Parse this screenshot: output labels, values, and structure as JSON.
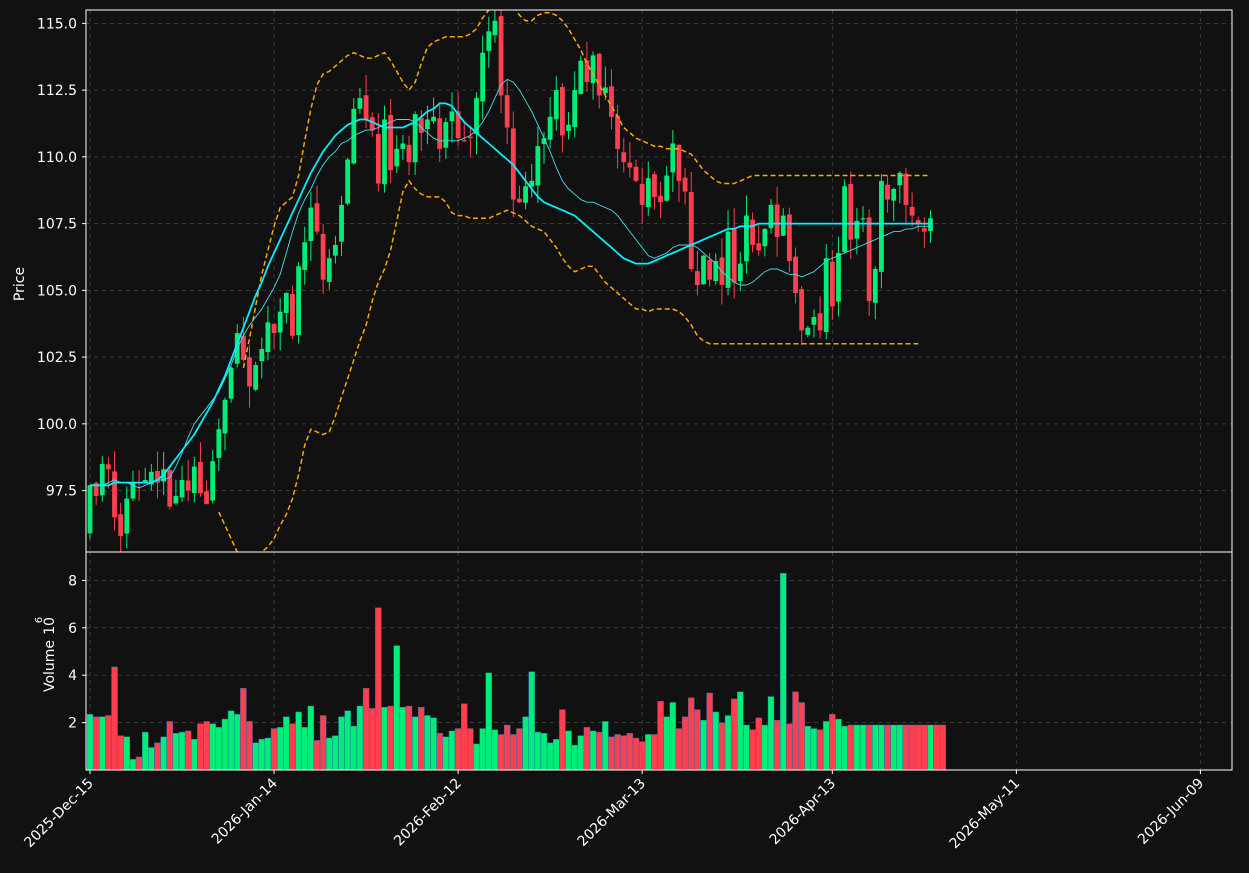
{
  "chart_data": [
    {
      "type": "candlestick",
      "panel": "price",
      "ylabel": "Price",
      "ylim": [
        95.2,
        115.5
      ],
      "yticks": [
        "97.5",
        "100.0",
        "102.5",
        "105.0",
        "107.5",
        "110.0",
        "112.5",
        "115.0"
      ],
      "xticks": [
        "2025-Dec-15",
        "2026-Jan-14",
        "2026-Feb-12",
        "2026-Mar-13",
        "2026-Apr-13",
        "2026-May-11",
        "2026-Jun-09"
      ],
      "xtick_index": [
        0,
        30,
        60,
        90,
        121,
        151,
        181
      ],
      "grid": true,
      "colors": {
        "up": "#00ee77",
        "down": "#ff3f4f",
        "ma_fast": "#40e0e8",
        "ma_slow": "#00f0ff",
        "bands": "#ffa500",
        "background": "#111111",
        "grid": "#444444",
        "axis": "#ffffff"
      },
      "close": [
        97.7,
        97.3,
        98.5,
        98.3,
        96.5,
        95.8,
        97.2,
        97.8,
        97.8,
        97.9,
        98.2,
        97.8,
        98.3,
        96.9,
        97.3,
        97.9,
        97.5,
        98.4,
        97.4,
        97.0,
        98.6,
        99.8,
        100.9,
        102.1,
        103.4,
        102.4,
        101.4,
        102.2,
        102.8,
        103.8,
        103.4,
        104.2,
        104.9,
        103.3,
        105.9,
        106.8,
        108.1,
        107.2,
        105.4,
        106.2,
        106.7,
        108.2,
        109.9,
        111.8,
        112.2,
        111.4,
        111.0,
        109.0,
        111.4,
        109.5,
        110.3,
        110.5,
        109.8,
        111.6,
        110.9,
        111.4,
        111.5,
        110.3,
        111.3,
        111.7,
        110.7,
        110.6,
        110.7,
        112.2,
        113.9,
        114.7,
        115.1,
        112.3,
        111.1,
        108.4,
        108.3,
        108.9,
        109.1,
        110.4,
        110.7,
        111.5,
        112.5,
        110.8,
        111.2,
        112.5,
        113.6,
        112.8,
        113.8,
        112.3,
        112.6,
        111.5,
        110.3,
        109.8,
        109.6,
        109.1,
        108.2,
        109.2,
        108.5,
        108.3,
        109.3,
        110.5,
        109.1,
        108.7,
        105.8,
        105.2,
        106.3,
        105.4,
        106.1,
        105.2,
        107.2,
        105.3,
        106.0,
        107.8,
        106.7,
        106.5,
        107.3,
        108.2,
        107.0,
        107.8,
        106.1,
        104.9,
        103.5,
        103.6,
        104.0,
        103.5,
        106.2,
        104.4,
        106.4,
        108.9,
        106.9,
        107.6,
        107.7,
        104.6,
        105.8,
        109.1,
        108.4,
        108.8,
        109.4,
        108.2,
        107.8,
        107.5,
        107.2,
        107.7
      ],
      "ma_fast": [
        97.7,
        97.7,
        97.7,
        97.8,
        97.9,
        97.8,
        97.8,
        97.7,
        97.6,
        97.7,
        97.8,
        97.9,
        97.9,
        98.0,
        98.4,
        98.9,
        99.5,
        100.0,
        100.3,
        100.6,
        100.9,
        101.2,
        101.7,
        102.2,
        102.8,
        103.3,
        103.7,
        104.0,
        104.3,
        104.7,
        105.1,
        105.6,
        106.4,
        107.2,
        107.9,
        108.4,
        108.8,
        109.3,
        109.7,
        110.0,
        110.2,
        110.5,
        110.6,
        110.8,
        110.9,
        111.0,
        111.0,
        111.1,
        111.2,
        111.3,
        111.4,
        111.4,
        111.4,
        111.3,
        111.1,
        110.9,
        110.7,
        110.6,
        110.6,
        110.6,
        110.6,
        110.7,
        110.8,
        111.0,
        111.3,
        111.7,
        112.2,
        112.7,
        112.9,
        112.8,
        112.5,
        112.1,
        111.7,
        111.2,
        110.7,
        110.2,
        109.6,
        109.1,
        108.8,
        108.6,
        108.4,
        108.3,
        108.3,
        108.2,
        108.1,
        108.0,
        107.8,
        107.5,
        107.2,
        106.9,
        106.6,
        106.3,
        106.2,
        106.3,
        106.4,
        106.6,
        106.7,
        106.7,
        106.7,
        106.6,
        106.4,
        106.2,
        106.0,
        105.7,
        105.5,
        105.3,
        105.2,
        105.2,
        105.3,
        105.5,
        105.7,
        105.8,
        105.8,
        105.7,
        105.6,
        105.6,
        105.5,
        105.6,
        105.7,
        105.9,
        106.1,
        106.2,
        106.3,
        106.4,
        106.5,
        106.6,
        106.7,
        106.8,
        106.9,
        107.0,
        107.1,
        107.2,
        107.2,
        107.3,
        107.3,
        107.4,
        107.4,
        107.4
      ],
      "ma_slow": [
        97.7,
        97.7,
        97.7,
        97.7,
        97.8,
        97.8,
        97.8,
        97.8,
        97.8,
        97.8,
        97.8,
        97.9,
        98.1,
        98.4,
        98.7,
        99.0,
        99.3,
        99.6,
        100.0,
        100.4,
        100.8,
        101.3,
        101.8,
        102.4,
        103.0,
        103.6,
        104.2,
        104.8,
        105.3,
        105.9,
        106.4,
        106.9,
        107.4,
        107.9,
        108.4,
        108.9,
        109.4,
        109.8,
        110.2,
        110.5,
        110.8,
        111.0,
        111.2,
        111.3,
        111.4,
        111.4,
        111.3,
        111.2,
        111.1,
        111.1,
        111.1,
        111.1,
        111.2,
        111.3,
        111.5,
        111.7,
        111.8,
        112.0,
        112.0,
        111.9,
        111.6,
        111.3,
        111.1,
        110.9,
        110.7,
        110.5,
        110.3,
        110.1,
        109.9,
        109.7,
        109.4,
        109.1,
        108.8,
        108.5,
        108.3,
        108.2,
        108.1,
        108.0,
        107.9,
        107.8,
        107.6,
        107.4,
        107.2,
        107.0,
        106.8,
        106.6,
        106.4,
        106.2,
        106.1,
        106.0,
        106.0,
        106.0,
        106.1,
        106.2,
        106.3,
        106.4,
        106.5,
        106.6,
        106.7,
        106.8,
        106.9,
        107.0,
        107.1,
        107.2,
        107.3,
        107.3,
        107.4,
        107.4,
        107.4,
        107.5,
        107.5,
        107.5,
        107.5,
        107.5,
        107.5,
        107.5,
        107.5,
        107.5,
        107.5,
        107.5,
        107.5,
        107.5,
        107.5,
        107.5,
        107.5,
        107.5,
        107.5,
        107.5,
        107.5,
        107.5,
        107.5,
        107.5,
        107.5,
        107.5,
        107.5,
        107.5,
        107.5,
        107.5
      ],
      "band_upper": [
        null,
        null,
        null,
        null,
        null,
        null,
        null,
        null,
        null,
        null,
        null,
        null,
        null,
        null,
        null,
        null,
        null,
        null,
        null,
        null,
        null,
        null,
        null,
        null,
        null,
        102.1,
        103.2,
        104.4,
        105.6,
        106.5,
        107.4,
        108.1,
        108.3,
        108.5,
        109.3,
        110.6,
        111.8,
        112.7,
        113.1,
        113.2,
        113.4,
        113.6,
        113.8,
        113.9,
        113.8,
        113.7,
        113.7,
        113.8,
        113.9,
        113.6,
        113.2,
        112.8,
        112.5,
        112.8,
        113.5,
        114.1,
        114.3,
        114.4,
        114.5,
        114.5,
        114.5,
        114.5,
        114.6,
        114.8,
        115.2,
        115.5,
        115.8,
        116.0,
        116.0,
        115.7,
        115.3,
        115.1,
        115.1,
        115.3,
        115.4,
        115.4,
        115.3,
        115.1,
        114.8,
        114.4,
        114.0,
        113.5,
        113.1,
        112.7,
        112.3,
        111.9,
        111.5,
        111.1,
        110.9,
        110.7,
        110.6,
        110.5,
        110.4,
        110.4,
        110.3,
        110.3,
        110.3,
        110.2,
        110.1,
        109.8,
        109.5,
        109.3,
        109.1,
        109.0,
        109.0,
        109.0,
        109.1,
        109.2,
        109.3,
        109.3,
        109.3,
        109.3,
        109.3,
        109.3,
        109.3,
        109.3,
        109.3,
        109.3,
        109.3,
        109.3,
        109.3,
        109.3,
        109.3,
        109.3,
        109.3,
        109.3,
        109.3,
        109.3,
        109.3,
        109.3,
        109.3,
        109.3,
        109.3,
        109.3,
        109.3,
        109.3,
        109.3,
        109.3
      ],
      "band_lower": [
        null,
        null,
        null,
        null,
        null,
        null,
        null,
        null,
        null,
        null,
        null,
        null,
        null,
        null,
        null,
        null,
        null,
        null,
        null,
        null,
        null,
        96.7,
        96.2,
        95.7,
        95.2,
        95.1,
        95.1,
        95.1,
        95.2,
        95.4,
        95.7,
        96.2,
        96.6,
        97.2,
        98.1,
        99.2,
        99.8,
        99.7,
        99.6,
        99.7,
        100.3,
        101.0,
        101.7,
        102.4,
        103.1,
        103.7,
        104.6,
        105.3,
        105.8,
        106.5,
        107.6,
        108.7,
        109.1,
        108.8,
        108.6,
        108.5,
        108.5,
        108.5,
        108.3,
        107.9,
        107.8,
        107.8,
        107.7,
        107.7,
        107.7,
        107.7,
        107.8,
        107.9,
        108.0,
        107.9,
        107.8,
        107.6,
        107.4,
        107.3,
        107.2,
        106.9,
        106.6,
        106.2,
        105.9,
        105.7,
        105.8,
        105.9,
        105.9,
        105.6,
        105.3,
        105.1,
        104.9,
        104.7,
        104.5,
        104.3,
        104.3,
        104.2,
        104.3,
        104.3,
        104.3,
        104.3,
        104.2,
        104.0,
        103.7,
        103.3,
        103.1,
        103.0,
        103.0,
        103.0,
        103.0,
        103.0,
        103.0,
        103.0,
        103.0,
        103.0,
        103.0,
        103.0,
        103.0,
        103.0,
        103.0,
        103.0,
        103.0,
        103.0,
        103.0,
        103.0,
        103.0,
        103.0,
        103.0,
        103.0,
        103.0,
        103.0,
        103.0,
        103.0,
        103.0,
        103.0,
        103.0,
        103.0,
        103.0,
        103.0,
        103.0,
        103.0
      ]
    },
    {
      "type": "bar",
      "panel": "volume",
      "ylabel": "Volume",
      "ylabel_exponent": "6",
      "ylim": [
        0,
        9.2
      ],
      "yticks": [
        "2",
        "4",
        "6",
        "8"
      ],
      "grid": true,
      "volume_millions": [
        2.35,
        2.25,
        2.25,
        2.3,
        4.35,
        1.45,
        1.4,
        0.45,
        0.55,
        1.6,
        0.95,
        1.15,
        1.4,
        2.05,
        1.55,
        1.6,
        1.65,
        1.3,
        1.95,
        2.05,
        1.95,
        1.8,
        2.15,
        2.5,
        2.35,
        3.45,
        2.05,
        1.15,
        1.3,
        1.35,
        1.75,
        1.8,
        2.25,
        1.95,
        2.45,
        1.8,
        2.7,
        1.25,
        2.3,
        1.35,
        1.45,
        2.25,
        2.5,
        1.85,
        2.7,
        3.45,
        2.6,
        6.85,
        2.65,
        2.7,
        5.25,
        2.65,
        2.7,
        2.25,
        2.65,
        2.3,
        2.2,
        1.55,
        1.4,
        1.65,
        1.75,
        2.8,
        1.75,
        1.1,
        1.75,
        4.1,
        1.7,
        1.5,
        1.9,
        1.5,
        1.75,
        2.25,
        4.15,
        1.6,
        1.55,
        1.15,
        1.3,
        2.55,
        1.65,
        1.05,
        1.45,
        1.8,
        1.65,
        1.6,
        2.05,
        1.4,
        1.5,
        1.45,
        1.55,
        1.35,
        1.2,
        1.5,
        1.5,
        2.9,
        2.25,
        2.85,
        1.75,
        2.25,
        3.05,
        2.55,
        2.1,
        3.25,
        2.45,
        2.0,
        2.3,
        3.0,
        3.3,
        1.9,
        1.7,
        2.2,
        1.9,
        3.1,
        2.1,
        8.3,
        1.95,
        3.3,
        2.85,
        1.85,
        1.75,
        1.7,
        2.05,
        2.35,
        2.15,
        1.85,
        1.9,
        1.9,
        1.9,
        1.9,
        1.9,
        1.9,
        1.9,
        1.9,
        1.9,
        1.9,
        1.9,
        1.9,
        1.9,
        1.9,
        1.9,
        1.9
      ]
    }
  ]
}
